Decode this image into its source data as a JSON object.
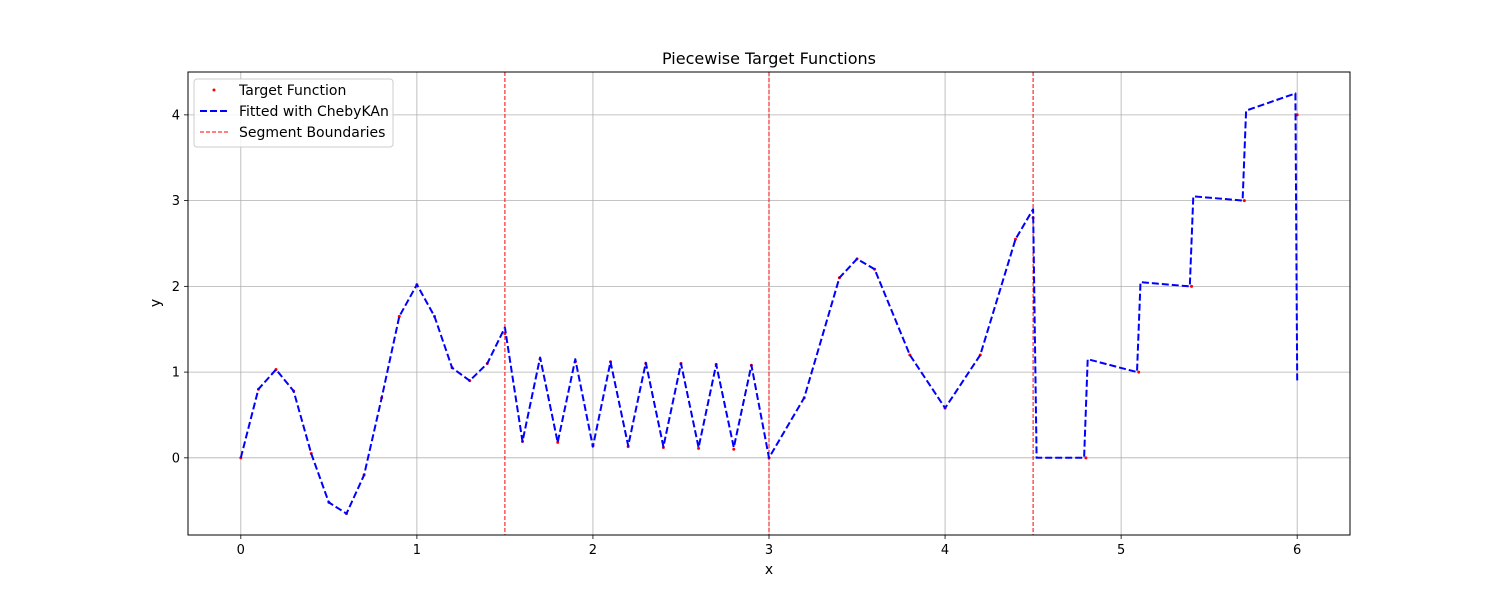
{
  "chart_data": {
    "type": "line",
    "title": "Piecewise Target Functions",
    "xlabel": "x",
    "ylabel": "y",
    "xlim": [
      -0.3,
      6.3
    ],
    "ylim": [
      -0.9,
      4.5
    ],
    "xticks": [
      0,
      1,
      2,
      3,
      4,
      5,
      6
    ],
    "yticks": [
      0,
      1,
      2,
      3,
      4
    ],
    "grid": true,
    "legend_position": "top-left",
    "segment_boundaries": [
      1.5,
      3.0,
      4.5
    ],
    "series": [
      {
        "name": "Target Function",
        "style": "red dots",
        "color": "#ff0000",
        "x": [
          0,
          0.1,
          0.2,
          0.3,
          0.4,
          0.5,
          0.6,
          0.7,
          0.8,
          0.9,
          1.0,
          1.1,
          1.2,
          1.3,
          1.4,
          1.5,
          1.6,
          1.7,
          1.8,
          1.9,
          2.0,
          2.1,
          2.2,
          2.3,
          2.4,
          2.5,
          2.6,
          2.7,
          2.8,
          2.9,
          3.0,
          3.2,
          3.4,
          3.5,
          3.6,
          3.8,
          4.0,
          4.2,
          4.4,
          4.5,
          4.8,
          5.1,
          5.4,
          5.7,
          6.0
        ],
        "y": [
          0,
          0.8,
          1.03,
          0.78,
          0.05,
          -0.52,
          -0.65,
          -0.2,
          0.7,
          1.65,
          2.02,
          1.65,
          1.05,
          0.9,
          1.1,
          1.45,
          0.19,
          1.15,
          0.18,
          1.12,
          0.14,
          1.12,
          0.13,
          1.1,
          0.12,
          1.1,
          0.11,
          1.09,
          0.1,
          1.08,
          0.0,
          0.7,
          2.1,
          2.32,
          2.2,
          1.2,
          0.58,
          1.2,
          2.55,
          2.8,
          0.0,
          1.0,
          2.0,
          3.0,
          4.0
        ]
      },
      {
        "name": "Fitted with ChebyKAn",
        "style": "blue dashed",
        "color": "#0000ff",
        "x": [
          0,
          0.1,
          0.2,
          0.3,
          0.4,
          0.5,
          0.6,
          0.7,
          0.8,
          0.9,
          1.0,
          1.1,
          1.2,
          1.3,
          1.4,
          1.5,
          1.6,
          1.7,
          1.8,
          1.9,
          2.0,
          2.1,
          2.2,
          2.3,
          2.4,
          2.5,
          2.6,
          2.7,
          2.8,
          2.9,
          3.0,
          3.2,
          3.4,
          3.5,
          3.6,
          3.8,
          4.0,
          4.2,
          4.4,
          4.5,
          4.52,
          4.79,
          4.81,
          5.09,
          5.11,
          5.39,
          5.41,
          5.69,
          5.71,
          5.99,
          6.0
        ],
        "y": [
          0,
          0.8,
          1.03,
          0.78,
          0.05,
          -0.52,
          -0.65,
          -0.2,
          0.7,
          1.65,
          2.02,
          1.65,
          1.05,
          0.9,
          1.1,
          1.52,
          0.19,
          1.17,
          0.18,
          1.15,
          0.13,
          1.12,
          0.14,
          1.11,
          0.13,
          1.1,
          0.12,
          1.09,
          0.12,
          1.08,
          0.0,
          0.7,
          2.1,
          2.32,
          2.2,
          1.2,
          0.58,
          1.2,
          2.55,
          2.9,
          0.0,
          0.0,
          1.15,
          1.0,
          2.05,
          2.0,
          3.05,
          3.0,
          4.05,
          4.25,
          0.9
        ]
      }
    ]
  },
  "legend": {
    "items": [
      {
        "label": "Target Function",
        "color": "#ff0000",
        "style": "dot"
      },
      {
        "label": "Fitted with ChebyKAn",
        "color": "#0000ff",
        "style": "dashed"
      },
      {
        "label": "Segment Boundaries",
        "color": "#ff0000",
        "style": "thin-dashed"
      }
    ]
  }
}
